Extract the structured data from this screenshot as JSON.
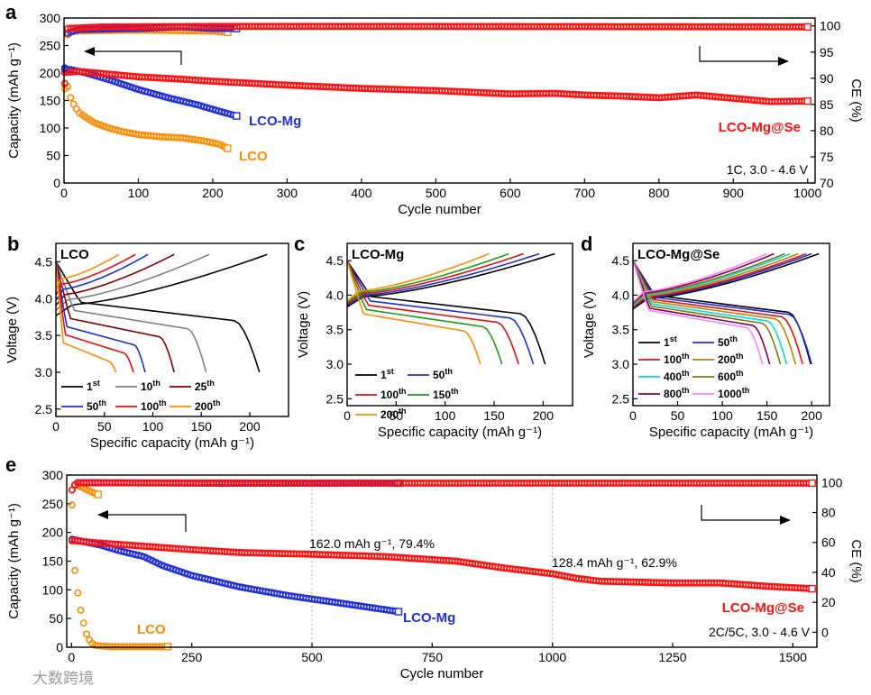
{
  "chart_data": [
    {
      "panel": "a",
      "type": "scatter",
      "xlabel": "Cycle number",
      "ylabel": "Capacity (mAh g⁻¹)",
      "y2label": "CE (%)",
      "xlim": [
        0,
        1010
      ],
      "ylim": [
        0,
        300
      ],
      "y2lim": [
        70,
        101.5
      ],
      "xticks": [
        0,
        100,
        200,
        300,
        400,
        500,
        600,
        700,
        800,
        900,
        1000
      ],
      "yticks": [
        0,
        50,
        100,
        150,
        200,
        250,
        300
      ],
      "y2ticks": [
        70,
        75,
        80,
        85,
        90,
        95,
        100
      ],
      "annotation": "1C, 3.0 - 4.6 V",
      "series": [
        {
          "name": "LCO",
          "color": "#ff8c00",
          "axis": "capacity",
          "points": [
            [
              1,
              205
            ],
            [
              5,
              175
            ],
            [
              10,
              150
            ],
            [
              20,
              128
            ],
            [
              40,
              110
            ],
            [
              60,
              100
            ],
            [
              80,
              93
            ],
            [
              100,
              88
            ],
            [
              130,
              84
            ],
            [
              160,
              82
            ],
            [
              190,
              76
            ],
            [
              210,
              70
            ],
            [
              220,
              63
            ]
          ]
        },
        {
          "name": "LCO-Mg",
          "color": "#1f2fd6",
          "axis": "capacity",
          "points": [
            [
              1,
              207
            ],
            [
              10,
              206
            ],
            [
              30,
              200
            ],
            [
              60,
              188
            ],
            [
              100,
              170
            ],
            [
              140,
              155
            ],
            [
              180,
              142
            ],
            [
              210,
              130
            ],
            [
              232,
              122
            ]
          ]
        },
        {
          "name": "LCO-Mg@Se",
          "color": "#ff1010",
          "axis": "capacity",
          "points": [
            [
              1,
              201
            ],
            [
              20,
              203
            ],
            [
              60,
              198
            ],
            [
              100,
              193
            ],
            [
              156,
              189
            ],
            [
              200,
              185
            ],
            [
              300,
              178
            ],
            [
              400,
              172
            ],
            [
              500,
              168
            ],
            [
              600,
              162
            ],
            [
              660,
              163
            ],
            [
              700,
              160
            ],
            [
              750,
              158
            ],
            [
              800,
              155
            ],
            [
              850,
              160
            ],
            [
              900,
              154
            ],
            [
              950,
              148
            ],
            [
              1000,
              149
            ]
          ]
        },
        {
          "name": "LCO CE",
          "color": "#ff8c00",
          "axis": "ce",
          "points": [
            [
              1,
              88
            ],
            [
              3,
              98
            ],
            [
              10,
              99
            ],
            [
              50,
              99.1
            ],
            [
              100,
              99.2
            ],
            [
              150,
              99.1
            ],
            [
              200,
              99.0
            ],
            [
              220,
              98.8
            ]
          ]
        },
        {
          "name": "LCO-Mg CE",
          "color": "#1f2fd6",
          "axis": "ce",
          "points": [
            [
              1,
              92
            ],
            [
              3,
              98.5
            ],
            [
              20,
              99.3
            ],
            [
              100,
              99.5
            ],
            [
              155,
              99.8
            ],
            [
              200,
              99.5
            ],
            [
              232,
              99.5
            ]
          ]
        },
        {
          "name": "LCO-Mg@Se CE",
          "color": "#ff1010",
          "axis": "ce",
          "points": [
            [
              1,
              89
            ],
            [
              3,
              99.5
            ],
            [
              50,
              99.8
            ],
            [
              200,
              99.9
            ],
            [
              500,
              99.9
            ],
            [
              1000,
              99.8
            ]
          ]
        }
      ],
      "labels": {
        "lco": "LCO",
        "lcomg": "LCO-Mg",
        "lcomgse": "LCO-Mg@Se"
      }
    },
    {
      "panel": "b",
      "type": "line",
      "title": "LCO",
      "xlabel": "Specific capacity (mAh g⁻¹)",
      "ylabel": "Voltage (V)",
      "xlim": [
        0,
        240
      ],
      "ylim": [
        2.4,
        4.75
      ],
      "xticks": [
        0,
        50,
        100,
        150,
        200
      ],
      "yticks": [
        2.5,
        3.0,
        3.5,
        4.0,
        4.5
      ],
      "series": [
        {
          "name": "1",
          "sup": "st",
          "color": "#000000",
          "capacity": 210,
          "charge_capacity": 218
        },
        {
          "name": "10",
          "sup": "th",
          "color": "#808080",
          "capacity": 155,
          "charge_capacity": 158
        },
        {
          "name": "25",
          "sup": "th",
          "color": "#800000",
          "capacity": 122,
          "charge_capacity": 122
        },
        {
          "name": "50",
          "sup": "th",
          "color": "#1f2fd6",
          "capacity": 92,
          "charge_capacity": 95
        },
        {
          "name": "100",
          "sup": "th",
          "color": "#e01010",
          "capacity": 80,
          "charge_capacity": 82
        },
        {
          "name": "200",
          "sup": "th",
          "color": "#ff8c00",
          "capacity": 62,
          "charge_capacity": 65
        }
      ]
    },
    {
      "panel": "c",
      "type": "line",
      "title": "LCO-Mg",
      "xlabel": "Specific capacity (mAh g⁻¹)",
      "ylabel": "Voltage (V)",
      "xlim": [
        0,
        230
      ],
      "ylim": [
        2.4,
        4.75
      ],
      "xticks": [
        0,
        50,
        100,
        150,
        200
      ],
      "yticks": [
        2.5,
        3.0,
        3.5,
        4.0,
        4.5
      ],
      "series": [
        {
          "name": "1",
          "sup": "st",
          "color": "#000000",
          "capacity": 202,
          "charge_capacity": 212
        },
        {
          "name": "50",
          "sup": "th",
          "color": "#1f2fd6",
          "capacity": 190,
          "charge_capacity": 196
        },
        {
          "name": "100",
          "sup": "th",
          "color": "#e01010",
          "capacity": 175,
          "charge_capacity": 180
        },
        {
          "name": "150",
          "sup": "th",
          "color": "#1a9a1a",
          "capacity": 158,
          "charge_capacity": 165
        },
        {
          "name": "200",
          "sup": "th",
          "color": "#ff8c00",
          "capacity": 136,
          "charge_capacity": 145
        }
      ]
    },
    {
      "panel": "d",
      "type": "line",
      "title": "LCO-Mg@Se",
      "xlabel": "Specific capacity (mAh g⁻¹)",
      "ylabel": "Voltage (V)",
      "xlim": [
        0,
        220
      ],
      "ylim": [
        2.4,
        4.75
      ],
      "xticks": [
        0,
        50,
        100,
        150,
        200
      ],
      "yticks": [
        2.5,
        3.0,
        3.5,
        4.0,
        4.5
      ],
      "series": [
        {
          "name": "1",
          "sup": "st",
          "color": "#000000",
          "capacity": 199,
          "charge_capacity": 208
        },
        {
          "name": "50",
          "sup": "th",
          "color": "#1f2fd6",
          "capacity": 200,
          "charge_capacity": 200
        },
        {
          "name": "100",
          "sup": "th",
          "color": "#e01010",
          "capacity": 190,
          "charge_capacity": 194
        },
        {
          "name": "200",
          "sup": "th",
          "color": "#c08000",
          "capacity": 182,
          "charge_capacity": 185
        },
        {
          "name": "400",
          "sup": "th",
          "color": "#00d8e0",
          "capacity": 172,
          "charge_capacity": 176
        },
        {
          "name": "600",
          "sup": "th",
          "color": "#7a7a10",
          "capacity": 165,
          "charge_capacity": 170
        },
        {
          "name": "800",
          "sup": "th",
          "color": "#800050",
          "capacity": 153,
          "charge_capacity": 158
        },
        {
          "name": "1000",
          "sup": "th",
          "color": "#ff80ff",
          "capacity": 145,
          "charge_capacity": 150
        }
      ]
    },
    {
      "panel": "e",
      "type": "scatter",
      "xlabel": "Cycle number",
      "ylabel": "Capacity (mAh g⁻¹)",
      "y2label": "CE (%)",
      "xlim": [
        -10,
        1550
      ],
      "ylim": [
        0,
        300
      ],
      "y2lim": [
        -10,
        105
      ],
      "xticks": [
        0,
        250,
        500,
        750,
        1000,
        1250,
        1500
      ],
      "yticks": [
        0,
        50,
        100,
        150,
        200,
        250,
        300
      ],
      "y2ticks": [
        0,
        20,
        40,
        60,
        80,
        100
      ],
      "annotation": "2C/5C, 3.0 - 4.6 V",
      "annotations": [
        "162.0 mAh g⁻¹, 79.4%",
        "128.4 mAh g⁻¹, 62.9%"
      ],
      "series": [
        {
          "name": "LCO",
          "color": "#ff8c00",
          "axis": "capacity",
          "points": [
            [
              1,
              185
            ],
            [
              5,
              150
            ],
            [
              10,
              110
            ],
            [
              20,
              60
            ],
            [
              30,
              25
            ],
            [
              40,
              8
            ],
            [
              50,
              3
            ],
            [
              80,
              1
            ],
            [
              120,
              1
            ],
            [
              200,
              1
            ]
          ]
        },
        {
          "name": "LCO-Mg",
          "color": "#1f2fd6",
          "axis": "capacity",
          "points": [
            [
              1,
              188
            ],
            [
              20,
              185
            ],
            [
              60,
              178
            ],
            [
              100,
              168
            ],
            [
              150,
              158
            ],
            [
              190,
              142
            ],
            [
              250,
              125
            ],
            [
              350,
              105
            ],
            [
              450,
              90
            ],
            [
              550,
              78
            ],
            [
              680,
              62
            ]
          ]
        },
        {
          "name": "LCO-Mg@Se",
          "color": "#ff1010",
          "axis": "capacity",
          "points": [
            [
              1,
              186
            ],
            [
              50,
              182
            ],
            [
              150,
              176
            ],
            [
              250,
              170
            ],
            [
              350,
              165
            ],
            [
              500,
              162
            ],
            [
              650,
              158
            ],
            [
              800,
              150
            ],
            [
              900,
              138
            ],
            [
              1000,
              128
            ],
            [
              1050,
              120
            ],
            [
              1100,
              115
            ],
            [
              1250,
              112
            ],
            [
              1350,
              112
            ],
            [
              1450,
              106
            ],
            [
              1540,
              102
            ]
          ]
        },
        {
          "name": "LCO CE",
          "color": "#ff8c00",
          "axis": "ce",
          "points": [
            [
              1,
              85
            ],
            [
              5,
              99
            ],
            [
              20,
              97
            ],
            [
              40,
              94
            ],
            [
              55,
              92
            ]
          ]
        },
        {
          "name": "LCO-Mg CE",
          "color": "#1f2fd6",
          "axis": "ce",
          "points": [
            [
              1,
              95
            ],
            [
              10,
              100
            ],
            [
              300,
              99.5
            ],
            [
              600,
              99.6
            ],
            [
              680,
              99.6
            ]
          ]
        },
        {
          "name": "LCO-Mg@Se CE",
          "color": "#ff1010",
          "axis": "ce",
          "points": [
            [
              1,
              95
            ],
            [
              10,
              99.8
            ],
            [
              700,
              99.6
            ],
            [
              1540,
              99.6
            ]
          ]
        }
      ],
      "labels": {
        "lco": "LCO",
        "lcomg": "LCO-Mg",
        "lcomgse": "LCO-Mg@Se"
      }
    }
  ],
  "panel_letters": [
    "a",
    "b",
    "c",
    "d",
    "e"
  ],
  "watermark": "大数跨境"
}
